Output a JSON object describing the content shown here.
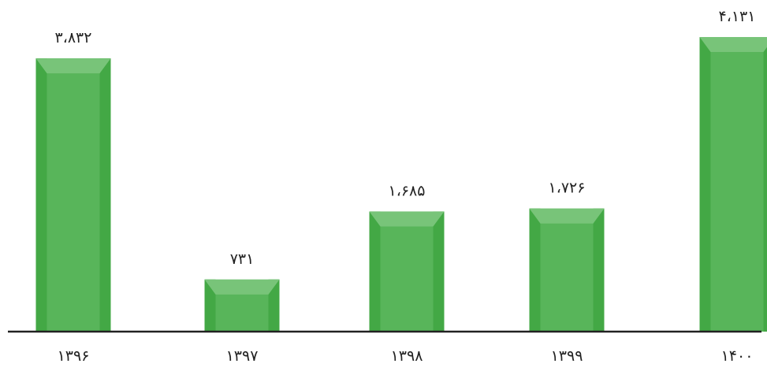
{
  "chart_data": {
    "type": "bar",
    "categories": [
      "۱۳۹۶",
      "۱۳۹۷",
      "۱۳۹۸",
      "۱۳۹۹",
      "۱۴۰۰"
    ],
    "values": [
      3832,
      731,
      1685,
      1726,
      4131
    ],
    "value_labels": [
      "۳،۸۳۲",
      "۷۳۱",
      "۱،۶۸۵",
      "۱،۷۲۶",
      "۴،۱۳۱"
    ],
    "title": "",
    "xlabel": "",
    "ylabel": "",
    "ylim": [
      0,
      4131
    ],
    "grid": false,
    "legend": "none",
    "colors": {
      "bar": "#58b55a",
      "bar_side": "#43a845",
      "bar_top": "#78c479",
      "baseline": "#222222",
      "text": "#222222"
    }
  }
}
